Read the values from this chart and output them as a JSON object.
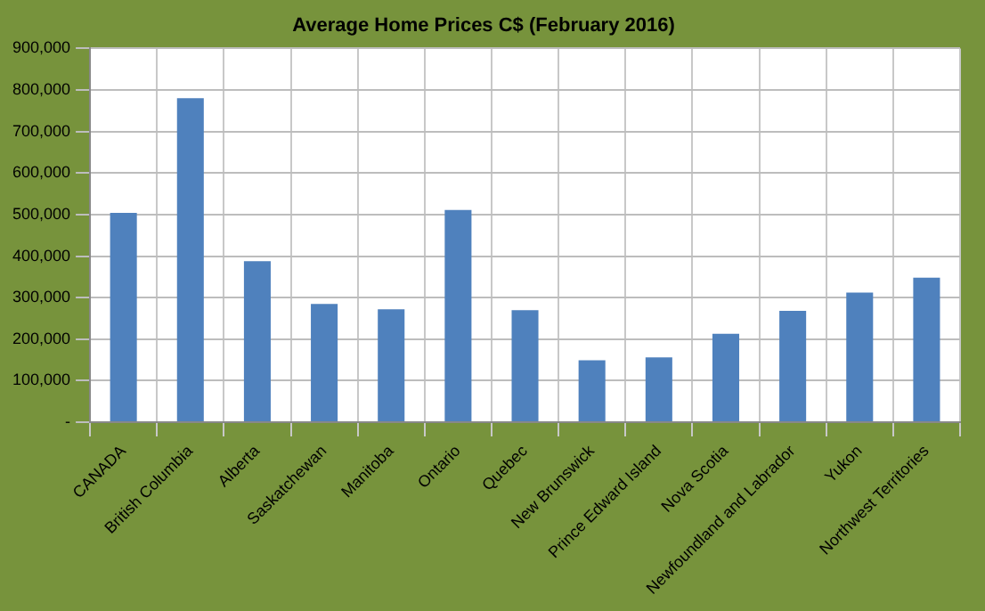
{
  "chart_data": {
    "type": "bar",
    "title": "Average Home Prices C$ (February 2016)",
    "categories": [
      "CANADA",
      "British Columbia",
      "Alberta",
      "Saskatchewan",
      "Manitoba",
      "Ontario",
      "Quebec",
      "New Brunswick",
      "Prince Edward Island",
      "Nova Scotia",
      "Newfoundland and Labrador",
      "Yukon",
      "Northwest Territories"
    ],
    "values": [
      504000,
      780000,
      388000,
      285000,
      272000,
      511000,
      270000,
      149000,
      156000,
      213000,
      268000,
      312000,
      348000
    ],
    "color": "#4f81bd",
    "ylim": [
      0,
      900000
    ],
    "yticks": [
      {
        "value": 0,
        "label": "-"
      },
      {
        "value": 100000,
        "label": "100,000"
      },
      {
        "value": 200000,
        "label": "200,000"
      },
      {
        "value": 300000,
        "label": "300,000"
      },
      {
        "value": 400000,
        "label": "400,000"
      },
      {
        "value": 500000,
        "label": "500,000"
      },
      {
        "value": 600000,
        "label": "600,000"
      },
      {
        "value": 700000,
        "label": "700,000"
      },
      {
        "value": 800000,
        "label": "800,000"
      },
      {
        "value": 900000,
        "label": "900,000"
      }
    ],
    "grid": true
  }
}
